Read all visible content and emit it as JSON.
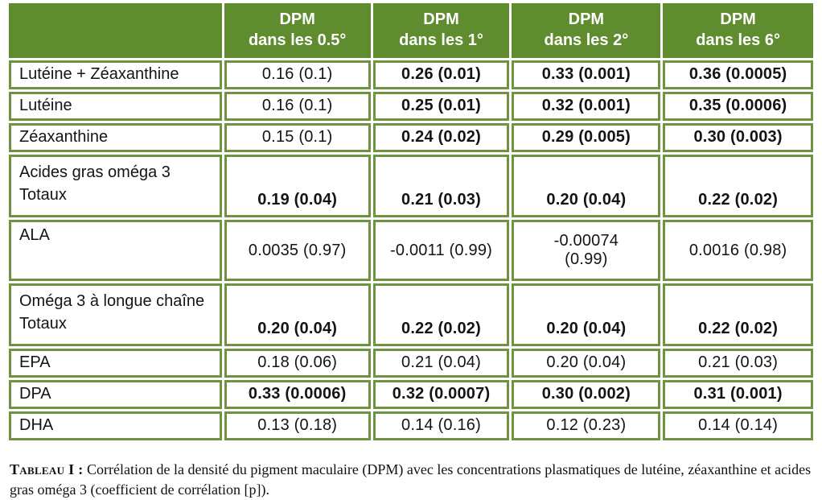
{
  "colors": {
    "header_green": "#5e8c2e",
    "border_green": "#6f9440",
    "header_text": "#ffffff",
    "body_text": "#141414"
  },
  "chart_data": {
    "type": "table",
    "title": "Tableau I",
    "header": [
      {
        "line1": "DPM",
        "line2": "dans les 0.5°"
      },
      {
        "line1": "DPM",
        "line2": "dans les 1°"
      },
      {
        "line1": "DPM",
        "line2": "dans les 2°"
      },
      {
        "line1": "DPM",
        "line2": "dans les 6°"
      }
    ],
    "rows": [
      {
        "label": "Lutéine + Zéaxanthine",
        "values": [
          "0.16 (0.1)",
          "0.26 (0.01)",
          "0.33 (0.001)",
          "0.36 (0.0005)"
        ],
        "bold": [
          false,
          true,
          true,
          true
        ]
      },
      {
        "label": "Lutéine",
        "values": [
          "0.16 (0.1)",
          "0.25 (0.01)",
          "0.32 (0.001)",
          "0.35 (0.0006)"
        ],
        "bold": [
          false,
          true,
          true,
          true
        ]
      },
      {
        "label": "Zéaxanthine",
        "values": [
          "0.15 (0.1)",
          "0.24 (0.02)",
          "0.29 (0.005)",
          "0.30 (0.003)"
        ],
        "bold": [
          false,
          true,
          true,
          true
        ]
      },
      {
        "label": "Acides gras oméga 3\nTotaux",
        "values": [
          "0.19 (0.04)",
          "0.21 (0.03)",
          "0.20 (0.04)",
          "0.22 (0.02)"
        ],
        "bold": [
          true,
          true,
          true,
          true
        ]
      },
      {
        "label": "ALA",
        "values": [
          "0.0035 (0.97)",
          "-0.0011 (0.99)",
          "-0.00074\n(0.99)",
          "0.0016 (0.98)"
        ],
        "bold": [
          false,
          false,
          false,
          false
        ]
      },
      {
        "label": "Oméga 3 à longue chaîne\nTotaux",
        "values": [
          "0.20 (0.04)",
          "0.22 (0.02)",
          "0.20 (0.04)",
          "0.22 (0.02)"
        ],
        "bold": [
          true,
          true,
          true,
          true
        ]
      },
      {
        "label": "EPA",
        "values": [
          "0.18 (0.06)",
          "0.21 (0.04)",
          "0.20 (0.04)",
          "0.21 (0.03)"
        ],
        "bold": [
          false,
          false,
          false,
          false
        ]
      },
      {
        "label": "DPA",
        "values": [
          "0.33 (0.0006)",
          "0.32 (0.0007)",
          "0.30 (0.002)",
          "0.31 (0.001)"
        ],
        "bold": [
          true,
          true,
          true,
          true
        ]
      },
      {
        "label": "DHA",
        "values": [
          "0.13 (0.18)",
          "0.14 (0.16)",
          "0.12 (0.23)",
          "0.14 (0.14)"
        ],
        "bold": [
          false,
          false,
          false,
          false
        ]
      }
    ]
  },
  "caption": {
    "label": "Tableau I :",
    "text": "Corrélation de la densité du pigment maculaire (DPM) avec les concentrations plasmatiques de lutéine, zéaxanthine et acides gras oméga 3 (coefficient de corrélation [p])."
  }
}
